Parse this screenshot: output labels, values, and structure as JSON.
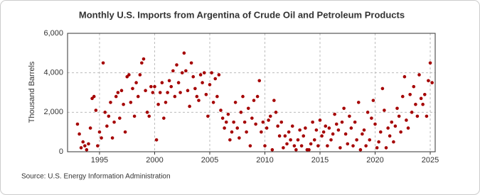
{
  "chart_data": {
    "type": "scatter",
    "title": "Monthly U.S. Imports from Argentina of Crude Oil and Petroleum Products",
    "y_label": "Thousand Barrels",
    "source": "Source: U.S. Energy Information Administration",
    "color": "#a50000",
    "grid": true,
    "xlim": [
      1992.1,
      2025.45
    ],
    "xticks": [
      1995,
      2000,
      2005,
      2010,
      2015,
      2020,
      2025
    ],
    "ylim": [
      0,
      6000
    ],
    "yticks": [
      0,
      {
        "value": 2000,
        "label": "2,000"
      },
      {
        "value": 4000,
        "label": "4,000"
      },
      {
        "value": 6000,
        "label": "6,000"
      }
    ],
    "x": [
      1993.0,
      1993.17,
      1993.33,
      1993.5,
      1993.67,
      1993.83,
      1994.0,
      1994.17,
      1994.33,
      1994.5,
      1994.67,
      1994.83,
      1995.0,
      1995.17,
      1995.33,
      1995.5,
      1995.67,
      1995.83,
      1996.0,
      1996.17,
      1996.33,
      1996.5,
      1996.67,
      1996.83,
      1997.0,
      1997.17,
      1997.33,
      1997.5,
      1997.67,
      1997.83,
      1998.0,
      1998.17,
      1998.33,
      1998.5,
      1998.67,
      1998.83,
      1999.0,
      1999.17,
      1999.33,
      1999.5,
      1999.67,
      1999.83,
      2000.0,
      2000.17,
      2000.33,
      2000.5,
      2000.67,
      2000.83,
      2001.0,
      2001.17,
      2001.33,
      2001.5,
      2001.67,
      2001.83,
      2002.0,
      2002.17,
      2002.33,
      2002.5,
      2002.67,
      2002.83,
      2003.0,
      2003.17,
      2003.33,
      2003.5,
      2003.67,
      2003.83,
      2004.0,
      2004.17,
      2004.33,
      2004.5,
      2004.67,
      2004.83,
      2005.0,
      2005.17,
      2005.33,
      2005.5,
      2005.67,
      2005.83,
      2006.0,
      2006.17,
      2006.33,
      2006.5,
      2006.67,
      2006.83,
      2007.0,
      2007.17,
      2007.33,
      2007.5,
      2007.67,
      2007.83,
      2008.0,
      2008.17,
      2008.33,
      2008.5,
      2008.67,
      2008.83,
      2009.0,
      2009.17,
      2009.33,
      2009.5,
      2009.67,
      2009.83,
      2010.0,
      2010.17,
      2010.33,
      2010.5,
      2010.67,
      2010.83,
      2011.0,
      2011.17,
      2011.33,
      2011.5,
      2011.67,
      2011.83,
      2012.0,
      2012.17,
      2012.33,
      2012.5,
      2012.67,
      2012.83,
      2013.0,
      2013.17,
      2013.33,
      2013.5,
      2013.67,
      2013.83,
      2014.0,
      2014.17,
      2014.33,
      2014.5,
      2014.67,
      2014.83,
      2015.0,
      2015.17,
      2015.33,
      2015.5,
      2015.67,
      2015.83,
      2016.0,
      2016.17,
      2016.33,
      2016.5,
      2016.67,
      2016.83,
      2017.0,
      2017.17,
      2017.33,
      2017.5,
      2017.67,
      2017.83,
      2018.0,
      2018.17,
      2018.33,
      2018.5,
      2018.67,
      2018.83,
      2019.0,
      2019.17,
      2019.33,
      2019.5,
      2019.67,
      2019.83,
      2020.0,
      2020.17,
      2020.33,
      2020.5,
      2020.67,
      2020.83,
      2021.0,
      2021.17,
      2021.33,
      2021.5,
      2021.67,
      2021.83,
      2022.0,
      2022.17,
      2022.33,
      2022.5,
      2022.67,
      2022.83,
      2023.0,
      2023.17,
      2023.33,
      2023.5,
      2023.67,
      2023.83,
      2024.0,
      2024.17,
      2024.33,
      2024.5,
      2024.67,
      2024.83,
      2025.0,
      2025.17
    ],
    "values": [
      1400,
      900,
      200,
      500,
      300,
      100,
      400,
      1200,
      2700,
      2800,
      2100,
      300,
      1000,
      700,
      4500,
      2000,
      1300,
      1800,
      2500,
      700,
      1500,
      2800,
      3000,
      1700,
      3100,
      2400,
      1000,
      3800,
      3900,
      2500,
      3200,
      1800,
      3500,
      2800,
      3900,
      4500,
      4700,
      3100,
      2000,
      1800,
      3300,
      3000,
      3300,
      600,
      2400,
      3000,
      3500,
      1700,
      2500,
      3000,
      3600,
      3300,
      4100,
      2800,
      4400,
      3500,
      3000,
      4000,
      5000,
      4100,
      3100,
      2300,
      4500,
      3800,
      3200,
      2800,
      2600,
      3900,
      3500,
      4000,
      2900,
      1800,
      3400,
      4000,
      2500,
      3700,
      2800,
      3900,
      2100,
      1700,
      1200,
      1500,
      1900,
      600,
      1000,
      1500,
      2500,
      1200,
      700,
      2000,
      2800,
      1500,
      1000,
      2200,
      300,
      1700,
      2600,
      1400,
      2800,
      3600,
      1000,
      1500,
      300,
      1200,
      1600,
      1800,
      100,
      2600,
      2000,
      1300,
      800,
      1500,
      200,
      800,
      400,
      1000,
      600,
      1300,
      300,
      100,
      600,
      1100,
      300,
      800,
      1200,
      100,
      100,
      400,
      1500,
      600,
      1100,
      300,
      1600,
      800,
      1000,
      1300,
      300,
      1200,
      600,
      900,
      1900,
      1400,
      1100,
      200,
      1500,
      2200,
      900,
      400,
      1800,
      1200,
      300,
      1500,
      600,
      2500,
      100,
      900,
      1100,
      300,
      2000,
      600,
      1700,
      2600,
      1400,
      200,
      500,
      1000,
      3200,
      2100,
      200,
      1200,
      800,
      1500,
      500,
      1300,
      2200,
      1800,
      1000,
      2800,
      3800,
      1600,
      1200,
      2900,
      2000,
      3300,
      2400,
      1800,
      3900,
      2700,
      2400,
      2900,
      1800,
      3600,
      4500,
      3500
    ]
  }
}
